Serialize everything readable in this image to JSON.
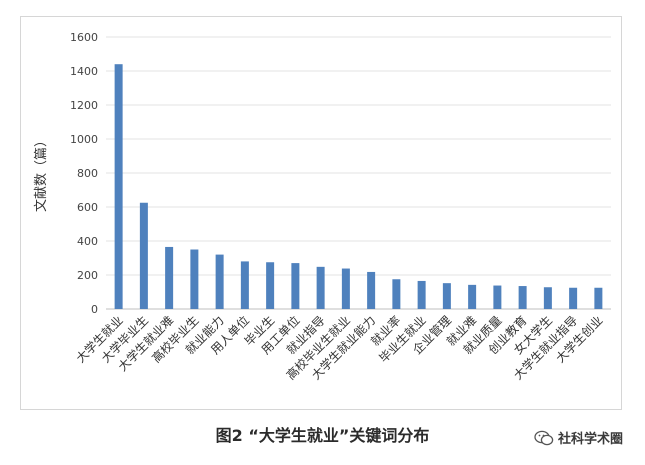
{
  "chart_data": {
    "type": "bar",
    "title": "",
    "xlabel": "",
    "ylabel": "文献数（篇）",
    "ylim": [
      0,
      1600
    ],
    "yticks": [
      0,
      200,
      400,
      600,
      800,
      1000,
      1200,
      1400,
      1600
    ],
    "grid": true,
    "categories": [
      "大学生就业",
      "大学毕业生",
      "大学生就业难",
      "高校毕业生",
      "就业能力",
      "用人单位",
      "毕业生",
      "用工单位",
      "就业指导",
      "高校毕业生就业",
      "大学生就业能力",
      "就业率",
      "毕业生就业",
      "企业管理",
      "就业难",
      "就业质量",
      "创业教育",
      "女大学生",
      "大学生就业指导",
      "大学生创业"
    ],
    "values": [
      1440,
      625,
      365,
      350,
      320,
      280,
      275,
      270,
      248,
      238,
      218,
      175,
      165,
      152,
      142,
      138,
      135,
      128,
      125,
      125
    ],
    "bar_color": "#4f81bd"
  },
  "caption": "图2 “大学生就业”关键词分布",
  "watermark": {
    "text": "社科学术圈",
    "icon": "wechat-icon"
  }
}
